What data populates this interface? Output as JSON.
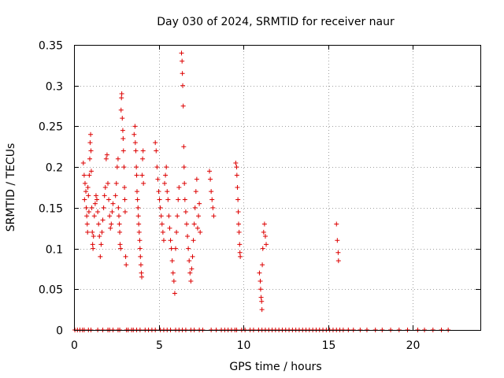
{
  "chart_data": {
    "type": "scatter",
    "title": "Day 030 of 2024, SRMTID for receiver naur",
    "xlabel": "GPS time / hours",
    "ylabel": "SRMTID / TECUs",
    "xlim": [
      0,
      24
    ],
    "ylim": [
      0,
      0.35
    ],
    "xticks": [
      0,
      5,
      10,
      15,
      20
    ],
    "xtick_labels": [
      "0",
      "5",
      "10",
      "15",
      "20"
    ],
    "yticks": [
      0,
      0.05,
      0.1,
      0.15,
      0.2,
      0.25,
      0.3,
      0.35
    ],
    "ytick_labels": [
      "0",
      "0.05",
      "0.1",
      "0.15",
      "0.2",
      "0.25",
      "0.3",
      "0.35"
    ],
    "grid": true,
    "marker": "+",
    "series": [
      {
        "name": "SRMTID",
        "color": "#dd0000",
        "points": [
          [
            0.55,
            0.205
          ],
          [
            0.6,
            0.19
          ],
          [
            0.62,
            0.16
          ],
          [
            0.65,
            0.18
          ],
          [
            0.7,
            0.17
          ],
          [
            0.72,
            0.15
          ],
          [
            0.75,
            0.14
          ],
          [
            0.78,
            0.13
          ],
          [
            0.8,
            0.12
          ],
          [
            0.82,
            0.175
          ],
          [
            0.85,
            0.165
          ],
          [
            0.88,
            0.145
          ],
          [
            0.9,
            0.19
          ],
          [
            0.93,
            0.21
          ],
          [
            0.95,
            0.23
          ],
          [
            0.98,
            0.24
          ],
          [
            1.0,
            0.22
          ],
          [
            1.02,
            0.195
          ],
          [
            1.05,
            0.15
          ],
          [
            1.08,
            0.12
          ],
          [
            1.1,
            0.105
          ],
          [
            1.12,
            0.1
          ],
          [
            1.15,
            0.115
          ],
          [
            1.2,
            0.14
          ],
          [
            1.25,
            0.155
          ],
          [
            1.3,
            0.165
          ],
          [
            1.35,
            0.16
          ],
          [
            1.4,
            0.145
          ],
          [
            1.45,
            0.13
          ],
          [
            1.5,
            0.115
          ],
          [
            1.55,
            0.09
          ],
          [
            1.6,
            0.105
          ],
          [
            1.65,
            0.12
          ],
          [
            1.7,
            0.135
          ],
          [
            1.75,
            0.15
          ],
          [
            1.8,
            0.165
          ],
          [
            1.85,
            0.175
          ],
          [
            1.9,
            0.21
          ],
          [
            1.95,
            0.215
          ],
          [
            2.0,
            0.18
          ],
          [
            2.05,
            0.16
          ],
          [
            2.1,
            0.14
          ],
          [
            2.15,
            0.125
          ],
          [
            2.2,
            0.13
          ],
          [
            2.25,
            0.145
          ],
          [
            2.3,
            0.155
          ],
          [
            2.45,
            0.165
          ],
          [
            2.5,
            0.18
          ],
          [
            2.55,
            0.2
          ],
          [
            2.6,
            0.21
          ],
          [
            2.62,
            0.15
          ],
          [
            2.65,
            0.14
          ],
          [
            2.68,
            0.13
          ],
          [
            2.7,
            0.12
          ],
          [
            2.72,
            0.105
          ],
          [
            2.75,
            0.1
          ],
          [
            2.78,
            0.27
          ],
          [
            2.8,
            0.285
          ],
          [
            2.82,
            0.29
          ],
          [
            2.85,
            0.26
          ],
          [
            2.88,
            0.245
          ],
          [
            2.9,
            0.235
          ],
          [
            2.92,
            0.22
          ],
          [
            2.95,
            0.2
          ],
          [
            2.98,
            0.175
          ],
          [
            3.0,
            0.16
          ],
          [
            3.02,
            0.145
          ],
          [
            3.05,
            0.09
          ],
          [
            3.08,
            0.08
          ],
          [
            3.55,
            0.24
          ],
          [
            3.6,
            0.25
          ],
          [
            3.62,
            0.23
          ],
          [
            3.65,
            0.22
          ],
          [
            3.68,
            0.2
          ],
          [
            3.7,
            0.19
          ],
          [
            3.72,
            0.17
          ],
          [
            3.75,
            0.16
          ],
          [
            3.78,
            0.15
          ],
          [
            3.8,
            0.14
          ],
          [
            3.82,
            0.13
          ],
          [
            3.85,
            0.12
          ],
          [
            3.88,
            0.11
          ],
          [
            3.9,
            0.1
          ],
          [
            3.92,
            0.09
          ],
          [
            3.95,
            0.08
          ],
          [
            3.98,
            0.07
          ],
          [
            4.0,
            0.065
          ],
          [
            4.02,
            0.19
          ],
          [
            4.05,
            0.21
          ],
          [
            4.08,
            0.22
          ],
          [
            4.1,
            0.18
          ],
          [
            4.8,
            0.23
          ],
          [
            4.85,
            0.22
          ],
          [
            4.9,
            0.2
          ],
          [
            4.95,
            0.185
          ],
          [
            5.0,
            0.17
          ],
          [
            5.05,
            0.16
          ],
          [
            5.1,
            0.15
          ],
          [
            5.15,
            0.14
          ],
          [
            5.2,
            0.13
          ],
          [
            5.25,
            0.12
          ],
          [
            5.3,
            0.11
          ],
          [
            5.35,
            0.18
          ],
          [
            5.4,
            0.19
          ],
          [
            5.45,
            0.2
          ],
          [
            5.5,
            0.17
          ],
          [
            5.55,
            0.16
          ],
          [
            5.6,
            0.14
          ],
          [
            5.65,
            0.125
          ],
          [
            5.7,
            0.11
          ],
          [
            5.75,
            0.1
          ],
          [
            5.8,
            0.085
          ],
          [
            5.85,
            0.07
          ],
          [
            5.9,
            0.06
          ],
          [
            5.95,
            0.045
          ],
          [
            6.0,
            0.1
          ],
          [
            6.05,
            0.12
          ],
          [
            6.1,
            0.14
          ],
          [
            6.15,
            0.16
          ],
          [
            6.2,
            0.175
          ],
          [
            6.35,
            0.34
          ],
          [
            6.38,
            0.33
          ],
          [
            6.4,
            0.315
          ],
          [
            6.42,
            0.3
          ],
          [
            6.45,
            0.275
          ],
          [
            6.48,
            0.225
          ],
          [
            6.5,
            0.2
          ],
          [
            6.52,
            0.18
          ],
          [
            6.55,
            0.16
          ],
          [
            6.6,
            0.145
          ],
          [
            6.65,
            0.13
          ],
          [
            6.7,
            0.115
          ],
          [
            6.75,
            0.1
          ],
          [
            6.8,
            0.085
          ],
          [
            6.85,
            0.07
          ],
          [
            6.9,
            0.06
          ],
          [
            6.95,
            0.075
          ],
          [
            7.0,
            0.09
          ],
          [
            7.05,
            0.11
          ],
          [
            7.1,
            0.13
          ],
          [
            7.15,
            0.15
          ],
          [
            7.2,
            0.17
          ],
          [
            7.25,
            0.185
          ],
          [
            7.3,
            0.125
          ],
          [
            7.35,
            0.14
          ],
          [
            7.4,
            0.155
          ],
          [
            7.45,
            0.12
          ],
          [
            8.0,
            0.195
          ],
          [
            8.05,
            0.185
          ],
          [
            8.1,
            0.17
          ],
          [
            8.15,
            0.16
          ],
          [
            8.2,
            0.15
          ],
          [
            8.25,
            0.14
          ],
          [
            9.55,
            0.205
          ],
          [
            9.6,
            0.2
          ],
          [
            9.62,
            0.19
          ],
          [
            9.65,
            0.175
          ],
          [
            9.68,
            0.16
          ],
          [
            9.7,
            0.145
          ],
          [
            9.72,
            0.13
          ],
          [
            9.75,
            0.12
          ],
          [
            9.78,
            0.105
          ],
          [
            9.8,
            0.095
          ],
          [
            9.82,
            0.09
          ],
          [
            10.95,
            0.07
          ],
          [
            11.0,
            0.06
          ],
          [
            11.02,
            0.05
          ],
          [
            11.05,
            0.04
          ],
          [
            11.08,
            0.035
          ],
          [
            11.1,
            0.025
          ],
          [
            11.12,
            0.08
          ],
          [
            11.15,
            0.1
          ],
          [
            11.2,
            0.12
          ],
          [
            11.25,
            0.13
          ],
          [
            11.3,
            0.115
          ],
          [
            11.35,
            0.105
          ],
          [
            15.5,
            0.13
          ],
          [
            15.55,
            0.11
          ],
          [
            15.6,
            0.095
          ],
          [
            15.62,
            0.085
          ]
        ]
      }
    ],
    "zero_points_x": [
      0.05,
      0.2,
      0.35,
      0.5,
      0.6,
      0.85,
      1.0,
      1.4,
      1.7,
      2.0,
      2.1,
      2.3,
      2.6,
      2.7,
      3.1,
      3.2,
      3.4,
      3.5,
      3.7,
      3.9,
      4.2,
      4.4,
      4.6,
      4.8,
      5.1,
      5.3,
      5.5,
      5.7,
      6.0,
      6.2,
      6.4,
      6.6,
      6.9,
      7.1,
      7.4,
      7.6,
      8.1,
      8.4,
      8.7,
      8.9,
      9.1,
      9.3,
      9.5,
      9.6,
      9.9,
      10.1,
      10.4,
      10.6,
      10.9,
      11.1,
      11.3,
      11.5,
      11.7,
      11.9,
      12.1,
      12.3,
      12.5,
      12.7,
      12.9,
      13.1,
      13.3,
      13.5,
      13.7,
      13.9,
      14.1,
      14.3,
      14.5,
      14.7,
      14.9,
      15.1,
      15.3,
      15.5,
      15.7,
      15.9,
      16.2,
      16.5,
      16.9,
      17.3,
      17.8,
      18.2,
      18.7,
      19.2,
      19.7,
      20.3,
      20.7,
      21.2,
      21.7,
      22.1
    ]
  }
}
